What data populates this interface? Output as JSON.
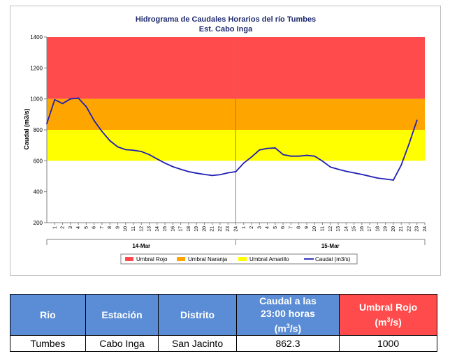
{
  "chart_data": {
    "type": "line",
    "title": "Hidrograma de Caudales Horarios del río Tumbes",
    "subtitle": "Est. Cabo Inga",
    "ylabel": "Caudal  (m3/s)",
    "ylim": [
      200,
      1400
    ],
    "yticks": [
      "200",
      "400",
      "600",
      "800",
      "1000",
      "1200",
      "1400"
    ],
    "x_tick_labels": [
      "1",
      "2",
      "3",
      "4",
      "5",
      "6",
      "7",
      "8",
      "9",
      "10",
      "11",
      "12",
      "13",
      "14",
      "15",
      "16",
      "17",
      "18",
      "19",
      "20",
      "21",
      "22",
      "23",
      "24",
      "1",
      "2",
      "3",
      "4",
      "5",
      "6",
      "7",
      "8",
      "9",
      "10",
      "11",
      "12",
      "13",
      "14",
      "15",
      "16",
      "17",
      "18",
      "19",
      "20",
      "21",
      "22",
      "23",
      "24"
    ],
    "day_labels": [
      "14-Mar",
      "15-Mar"
    ],
    "bands": [
      {
        "name": "Umbral Rojo",
        "from": 1000,
        "to": 1400,
        "color": "#ff4b4b"
      },
      {
        "name": "Umbral Naranja",
        "from": 800,
        "to": 1000,
        "color": "#ffa500"
      },
      {
        "name": "Umbral Amarillo",
        "from": 600,
        "to": 800,
        "color": "#ffff00"
      }
    ],
    "series": [
      {
        "name": "Caudal (m3/s)",
        "color": "#1f1fb4",
        "x": [
          0,
          1,
          2,
          3,
          4,
          5,
          6,
          7,
          8,
          9,
          10,
          11,
          12,
          13,
          14,
          15,
          16,
          17,
          18,
          19,
          20,
          21,
          22,
          23,
          24,
          25,
          26,
          27,
          28,
          29,
          30,
          31,
          32,
          33,
          34,
          35,
          36,
          37,
          38,
          39,
          40,
          41,
          42,
          43,
          44,
          45,
          46,
          47
        ],
        "values": [
          840,
          995,
          970,
          1000,
          1005,
          950,
          860,
          790,
          730,
          690,
          672,
          668,
          660,
          640,
          612,
          585,
          562,
          545,
          530,
          520,
          512,
          505,
          510,
          522,
          530,
          585,
          625,
          670,
          680,
          683,
          640,
          630,
          630,
          635,
          630,
          598,
          560,
          545,
          532,
          522,
          512,
          500,
          488,
          482,
          475,
          572,
          710,
          862
        ]
      }
    ],
    "legend": {
      "placement": "bottom",
      "items": [
        "Umbral Rojo",
        "Umbral Naranja",
        "Umbral Amarillo",
        "Caudal (m3/s)"
      ]
    },
    "grid": false
  },
  "table": {
    "headers": {
      "rio": "Rio",
      "estacion": "Estación",
      "distrito": "Distrito",
      "caudal_line1": "Caudal a las",
      "caudal_line2": "23:00 horas",
      "caudal_unit_base": "(m",
      "caudal_unit_sup": "3",
      "caudal_unit_end": "/s)",
      "umbral_line1": "Umbral Rojo",
      "umbral_unit_base": "(m",
      "umbral_unit_sup": "3",
      "umbral_unit_end": "/s)"
    },
    "row": {
      "rio": "Tumbes",
      "estacion": "Cabo Inga",
      "distrito": "San Jacinto",
      "caudal": "862.3",
      "umbral": "1000"
    }
  }
}
